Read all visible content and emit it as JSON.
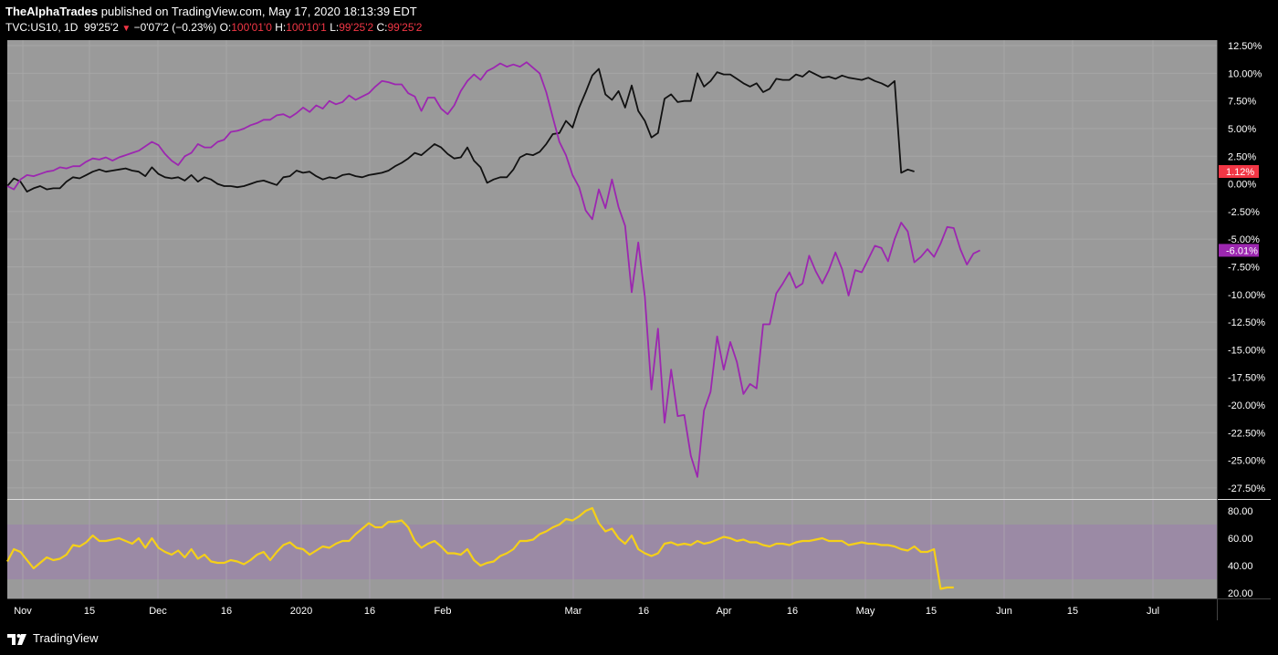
{
  "header": {
    "author": "TheAlphaTrades",
    "published": " published on TradingView.com, May 17, 2020 18:13:39 EDT",
    "symbol": "TVC:US10, 1D",
    "price": "99'25'2",
    "change": "−0'07'2 (−0.23%)",
    "o_label": "O:",
    "o_val": "100'01'0",
    "h_label": "H:",
    "h_val": "100'10'1",
    "l_label": "L:",
    "l_val": "99'25'2",
    "c_label": "C:",
    "c_val": "99'25'2"
  },
  "footer": {
    "brand": "TradingView"
  },
  "colors": {
    "background": "#000000",
    "pane": "#9a9a9a",
    "us10": "#111111",
    "equity": "#9c27b0",
    "rsi": "#f5d018",
    "rsi_band": "#9b8aa5",
    "badge_us10": "#f23645",
    "badge_equity": "#9c27b0"
  },
  "chart_data": [
    {
      "type": "line",
      "pane": "main",
      "y_axis_unit": "%",
      "ylim": [
        -28.5,
        13
      ],
      "y_ticks": [
        "12.50%",
        "10.00%",
        "7.50%",
        "5.00%",
        "2.50%",
        "0.00%",
        "-2.50%",
        "-5.00%",
        "-7.50%",
        "-10.00%",
        "-12.50%",
        "-15.00%",
        "-17.50%",
        "-20.00%",
        "-22.50%",
        "-25.00%",
        "-27.50%"
      ],
      "x_ticks": [
        "Nov",
        "15",
        "Dec",
        "16",
        "2020",
        "16",
        "Feb",
        "Mar",
        "16",
        "Apr",
        "16",
        "May",
        "15",
        "Jun",
        "15",
        "Jul"
      ],
      "series": [
        {
          "key": "us10",
          "badge": "1.12%",
          "values": [
            -0.2,
            0.5,
            0.2,
            -0.7,
            -0.4,
            -0.2,
            -0.5,
            -0.4,
            -0.4,
            0.2,
            0.6,
            0.5,
            0.8,
            1.1,
            1.3,
            1.1,
            1.2,
            1.3,
            1.4,
            1.2,
            1.1,
            0.7,
            1.5,
            0.9,
            0.6,
            0.5,
            0.6,
            0.3,
            0.8,
            0.2,
            0.6,
            0.4,
            0.0,
            -0.2,
            -0.2,
            -0.3,
            -0.2,
            0.0,
            0.2,
            0.3,
            0.1,
            -0.1,
            0.6,
            0.7,
            1.2,
            1.0,
            1.1,
            0.7,
            0.4,
            0.6,
            0.5,
            0.8,
            0.9,
            0.7,
            0.6,
            0.8,
            0.9,
            1.0,
            1.2,
            1.6,
            1.9,
            2.3,
            2.8,
            2.6,
            3.1,
            3.6,
            3.3,
            2.7,
            2.3,
            2.4,
            3.3,
            2.1,
            1.5,
            0.1,
            0.4,
            0.6,
            0.6,
            1.3,
            2.4,
            2.7,
            2.6,
            2.9,
            3.6,
            4.5,
            4.6,
            5.7,
            5.1,
            6.9,
            8.3,
            9.8,
            10.4,
            8.1,
            7.6,
            8.4,
            6.9,
            8.9,
            6.6,
            5.7,
            4.2,
            4.6,
            7.7,
            8.1,
            7.4,
            7.5,
            7.5,
            10.0,
            8.8,
            9.3,
            10.1,
            9.9,
            9.9,
            9.5,
            9.1,
            8.8,
            9.1,
            8.3,
            8.6,
            9.5,
            9.4,
            9.4,
            9.9,
            9.7,
            10.2,
            9.9,
            9.6,
            9.7,
            9.5,
            9.8,
            9.6,
            9.5,
            9.4,
            9.6,
            9.3,
            9.1,
            8.8,
            9.3,
            1.0,
            1.3,
            1.12
          ]
        },
        {
          "key": "equity",
          "badge": "-6.01%",
          "values": [
            -0.2,
            -0.5,
            0.4,
            0.8,
            0.7,
            0.9,
            1.1,
            1.2,
            1.5,
            1.4,
            1.6,
            1.6,
            2.0,
            2.3,
            2.2,
            2.4,
            2.1,
            2.4,
            2.6,
            2.8,
            3.0,
            3.4,
            3.8,
            3.5,
            2.7,
            2.1,
            1.7,
            2.5,
            2.8,
            3.6,
            3.3,
            3.3,
            3.8,
            4.0,
            4.7,
            4.8,
            5.0,
            5.3,
            5.5,
            5.8,
            5.8,
            6.2,
            6.3,
            6.0,
            6.4,
            6.9,
            6.5,
            7.1,
            6.8,
            7.5,
            7.2,
            7.4,
            8.0,
            7.6,
            7.9,
            8.2,
            8.8,
            9.3,
            9.2,
            9.0,
            9.0,
            8.2,
            7.9,
            6.6,
            7.8,
            7.8,
            6.8,
            6.3,
            7.1,
            8.4,
            9.3,
            9.9,
            9.4,
            10.2,
            10.5,
            10.9,
            10.6,
            10.8,
            10.6,
            11.0,
            10.5,
            10.0,
            8.3,
            6.0,
            3.8,
            2.6,
            0.8,
            -0.3,
            -2.4,
            -3.2,
            -0.5,
            -2.2,
            0.4,
            -2.1,
            -3.8,
            -9.8,
            -5.3,
            -10.2,
            -18.6,
            -13.1,
            -21.6,
            -16.8,
            -21.0,
            -20.9,
            -24.6,
            -26.5,
            -20.5,
            -18.8,
            -13.8,
            -16.8,
            -14.3,
            -16.1,
            -19.0,
            -18.1,
            -18.5,
            -12.7,
            -12.7,
            -9.9,
            -9.0,
            -8.0,
            -9.4,
            -9.0,
            -6.5,
            -7.9,
            -9.0,
            -7.8,
            -6.2,
            -7.7,
            -10.1,
            -7.8,
            -8.0,
            -6.8,
            -5.6,
            -5.8,
            -7.0,
            -5.0,
            -3.5,
            -4.3,
            -7.1,
            -6.6,
            -5.9,
            -6.6,
            -5.4,
            -3.9,
            -4.0,
            -5.9,
            -7.3,
            -6.3,
            -6.01
          ]
        }
      ]
    },
    {
      "type": "line",
      "pane": "oscillator",
      "ylim": [
        16,
        88
      ],
      "y_ticks": [
        "80.00",
        "60.00",
        "40.00",
        "20.00"
      ],
      "band": [
        30,
        70
      ],
      "series": [
        {
          "key": "rsi",
          "values": [
            43,
            52,
            50,
            44,
            38,
            42,
            46,
            44,
            45,
            48,
            55,
            54,
            57,
            62,
            58,
            58,
            59,
            60,
            58,
            56,
            60,
            53,
            60,
            53,
            50,
            48,
            51,
            46,
            52,
            45,
            48,
            43,
            42,
            42,
            44,
            43,
            41,
            44,
            48,
            50,
            44,
            50,
            55,
            57,
            53,
            52,
            48,
            51,
            54,
            53,
            56,
            58,
            58,
            63,
            67,
            71,
            68,
            68,
            72,
            72,
            73,
            68,
            58,
            53,
            56,
            58,
            54,
            49,
            49,
            48,
            52,
            44,
            40,
            42,
            43,
            47,
            49,
            52,
            58,
            58,
            59,
            63,
            65,
            68,
            70,
            74,
            73,
            76,
            80,
            82,
            71,
            65,
            67,
            60,
            56,
            62,
            52,
            49,
            47,
            49,
            56,
            57,
            55,
            56,
            55,
            58,
            56,
            57,
            59,
            61,
            60,
            58,
            59,
            57,
            57,
            55,
            54,
            56,
            56,
            55,
            57,
            58,
            58,
            59,
            60,
            58,
            58,
            58,
            55,
            56,
            57,
            56,
            56,
            55,
            55,
            54,
            52,
            51,
            54,
            50,
            50,
            52,
            23,
            24,
            24
          ]
        }
      ]
    }
  ]
}
